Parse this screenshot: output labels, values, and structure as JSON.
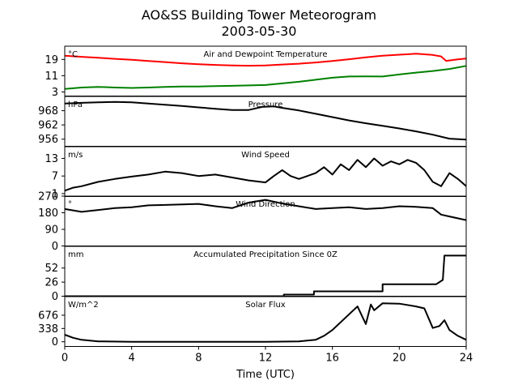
{
  "title_line1": "AO&SS Building Tower Meteorogram",
  "title_line2": "2003-05-30",
  "chart_data": {
    "type": "line",
    "xlabel": "Time (UTC)",
    "xlim": [
      0,
      24
    ],
    "xticks": [
      "0",
      "4",
      "8",
      "12",
      "16",
      "20",
      "24"
    ],
    "grid": false,
    "panels": [
      {
        "key": "temp",
        "title": "Air and Dewpoint Temperature",
        "unit": "°C",
        "ylim": [
          1,
          25.5
        ],
        "yticks": [
          3,
          11,
          19
        ],
        "series": [
          {
            "color": "#ff0000",
            "points": [
              [
                0,
                20.8
              ],
              [
                1,
                20.3
              ],
              [
                2,
                19.8
              ],
              [
                3,
                19.3
              ],
              [
                4,
                18.8
              ],
              [
                5,
                18.2
              ],
              [
                6,
                17.7
              ],
              [
                7,
                17.1
              ],
              [
                8,
                16.6
              ],
              [
                9,
                16.3
              ],
              [
                10,
                16.0
              ],
              [
                11,
                15.9
              ],
              [
                12,
                16.0
              ],
              [
                13,
                16.5
              ],
              [
                14,
                16.9
              ],
              [
                15,
                17.5
              ],
              [
                16,
                18.2
              ],
              [
                17,
                19.1
              ],
              [
                18,
                20.0
              ],
              [
                19,
                20.8
              ],
              [
                20,
                21.3
              ],
              [
                21,
                21.8
              ],
              [
                22,
                21.2
              ],
              [
                22.5,
                20.5
              ],
              [
                22.8,
                18.3
              ],
              [
                23.5,
                19.0
              ],
              [
                24,
                19.4
              ]
            ]
          },
          {
            "color": "#008000",
            "points": [
              [
                0,
                4.5
              ],
              [
                1,
                5.2
              ],
              [
                2,
                5.5
              ],
              [
                3,
                5.2
              ],
              [
                4,
                5.0
              ],
              [
                5,
                5.2
              ],
              [
                6,
                5.5
              ],
              [
                7,
                5.7
              ],
              [
                8,
                5.7
              ],
              [
                9,
                5.9
              ],
              [
                10,
                6.0
              ],
              [
                11,
                6.2
              ],
              [
                12,
                6.4
              ],
              [
                13,
                7.2
              ],
              [
                14,
                8.0
              ],
              [
                15,
                9.0
              ],
              [
                16,
                10.0
              ],
              [
                17,
                10.6
              ],
              [
                18,
                10.7
              ],
              [
                19,
                10.6
              ],
              [
                20,
                11.6
              ],
              [
                21,
                12.5
              ],
              [
                22,
                13.3
              ],
              [
                23,
                14.3
              ],
              [
                24,
                15.8
              ]
            ]
          }
        ]
      },
      {
        "key": "pressure",
        "title": "Pressure",
        "unit": "hPa",
        "ylim": [
          953,
          974
        ],
        "yticks": [
          956,
          962,
          968
        ],
        "series": [
          {
            "color": "#000000",
            "points": [
              [
                0,
                971.0
              ],
              [
                1,
                971.3
              ],
              [
                2,
                971.5
              ],
              [
                3,
                971.7
              ],
              [
                4,
                971.5
              ],
              [
                5,
                971.0
              ],
              [
                6,
                970.5
              ],
              [
                7,
                970.0
              ],
              [
                8,
                969.4
              ],
              [
                9,
                968.8
              ],
              [
                10,
                968.3
              ],
              [
                11,
                968.3
              ],
              [
                11.8,
                969.6
              ],
              [
                12.5,
                969.8
              ],
              [
                13,
                969.2
              ],
              [
                14,
                968.1
              ],
              [
                15,
                966.7
              ],
              [
                16,
                965.3
              ],
              [
                17,
                963.9
              ],
              [
                18,
                962.7
              ],
              [
                19,
                961.6
              ],
              [
                20,
                960.5
              ],
              [
                21,
                959.3
              ],
              [
                22,
                957.9
              ],
              [
                23,
                956.2
              ],
              [
                24,
                955.8
              ]
            ]
          }
        ]
      },
      {
        "key": "wind",
        "title": "Wind Speed",
        "unit": "m/s",
        "ylim": [
          0,
          17
        ],
        "yticks": [
          1,
          7,
          13
        ],
        "series": [
          {
            "color": "#000000",
            "points": [
              [
                0,
                2.0
              ],
              [
                0.5,
                3.0
              ],
              [
                1,
                3.5
              ],
              [
                2,
                5.0
              ],
              [
                3,
                6.0
              ],
              [
                4,
                6.8
              ],
              [
                5,
                7.5
              ],
              [
                6,
                8.5
              ],
              [
                7,
                8.0
              ],
              [
                8,
                7.0
              ],
              [
                9,
                7.5
              ],
              [
                10,
                6.5
              ],
              [
                11,
                5.5
              ],
              [
                12,
                4.8
              ],
              [
                12.5,
                7.0
              ],
              [
                13,
                9.0
              ],
              [
                13.5,
                7.0
              ],
              [
                14,
                6.0
              ],
              [
                15,
                8.0
              ],
              [
                15.5,
                10.0
              ],
              [
                16,
                7.5
              ],
              [
                16.5,
                11.0
              ],
              [
                17,
                9.0
              ],
              [
                17.5,
                12.5
              ],
              [
                18,
                10.0
              ],
              [
                18.5,
                13.0
              ],
              [
                19,
                10.5
              ],
              [
                19.5,
                12.0
              ],
              [
                20,
                11.0
              ],
              [
                20.5,
                12.5
              ],
              [
                21,
                11.5
              ],
              [
                21.5,
                9.0
              ],
              [
                22,
                5.0
              ],
              [
                22.5,
                3.5
              ],
              [
                23,
                8.0
              ],
              [
                23.5,
                6.0
              ],
              [
                24,
                3.5
              ]
            ]
          }
        ]
      },
      {
        "key": "direction",
        "title": "Wind Direction",
        "unit": "°",
        "ylim": [
          0,
          270
        ],
        "yticks": [
          0,
          90,
          180,
          270
        ],
        "series": [
          {
            "color": "#000000",
            "points": [
              [
                0,
                200
              ],
              [
                1,
                185
              ],
              [
                2,
                195
              ],
              [
                3,
                205
              ],
              [
                4,
                210
              ],
              [
                5,
                220
              ],
              [
                6,
                222
              ],
              [
                7,
                225
              ],
              [
                8,
                228
              ],
              [
                9,
                215
              ],
              [
                10,
                205
              ],
              [
                11,
                235
              ],
              [
                12,
                250
              ],
              [
                12.5,
                240
              ],
              [
                13,
                230
              ],
              [
                14,
                215
              ],
              [
                15,
                200
              ],
              [
                16,
                205
              ],
              [
                17,
                210
              ],
              [
                18,
                200
              ],
              [
                19,
                205
              ],
              [
                20,
                215
              ],
              [
                21,
                212
              ],
              [
                22,
                205
              ],
              [
                22.5,
                170
              ],
              [
                23,
                160
              ],
              [
                24,
                140
              ]
            ]
          }
        ]
      },
      {
        "key": "precip",
        "title": "Accumulated Precipitation Since 0Z",
        "unit": "mm",
        "ylim": [
          0,
          92
        ],
        "yticks": [
          0,
          26,
          52
        ],
        "series": [
          {
            "color": "#000000",
            "points": [
              [
                0,
                0
              ],
              [
                13.1,
                0
              ],
              [
                13.1,
                3
              ],
              [
                14.9,
                3
              ],
              [
                14.9,
                9
              ],
              [
                19.0,
                9
              ],
              [
                19.0,
                22
              ],
              [
                22.2,
                22
              ],
              [
                22.6,
                30
              ],
              [
                22.7,
                75
              ],
              [
                24,
                75
              ]
            ]
          }
        ]
      },
      {
        "key": "solar",
        "title": "Solar Flux",
        "unit": "W/m^2",
        "ylim": [
          -120,
          1150
        ],
        "yticks": [
          0,
          338,
          676
        ],
        "series": [
          {
            "color": "#000000",
            "points": [
              [
                0,
                180
              ],
              [
                0.5,
                100
              ],
              [
                1,
                50
              ],
              [
                2,
                10
              ],
              [
                4,
                0
              ],
              [
                12,
                0
              ],
              [
                14,
                10
              ],
              [
                15,
                50
              ],
              [
                15.5,
                150
              ],
              [
                16,
                300
              ],
              [
                16.5,
                500
              ],
              [
                17,
                700
              ],
              [
                17.5,
                900
              ],
              [
                18,
                450
              ],
              [
                18.3,
                950
              ],
              [
                18.5,
                800
              ],
              [
                19,
                980
              ],
              [
                20,
                970
              ],
              [
                21,
                900
              ],
              [
                21.5,
                850
              ],
              [
                22,
                350
              ],
              [
                22.4,
                400
              ],
              [
                22.7,
                550
              ],
              [
                23,
                300
              ],
              [
                23.5,
                150
              ],
              [
                24,
                50
              ]
            ]
          }
        ]
      }
    ]
  }
}
